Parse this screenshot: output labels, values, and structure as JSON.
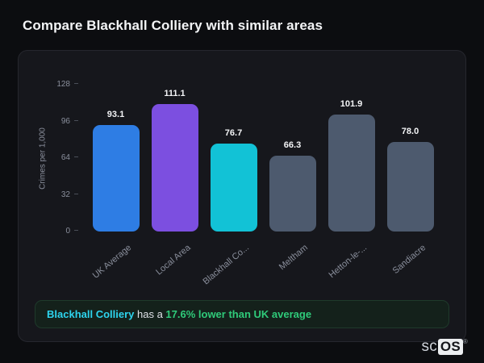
{
  "page": {
    "title": "Compare Blackhall Colliery with similar areas"
  },
  "chart_data": {
    "type": "bar",
    "title": "Compare Blackhall Colliery with similar areas",
    "xlabel": "",
    "ylabel": "Crimes per 1,000",
    "ylim": [
      0,
      128
    ],
    "yticks": [
      0,
      32,
      64,
      96,
      128
    ],
    "grid": false,
    "legend": false,
    "categories": [
      "UK Average",
      "Local Area",
      "Blackhall Co...",
      "Meltham",
      "Hetton-le-...",
      "Sandiacre"
    ],
    "values": [
      93.1,
      111.1,
      76.7,
      66.3,
      101.9,
      78.0
    ],
    "value_labels": [
      "93.1",
      "111.1",
      "76.7",
      "66.3",
      "101.9",
      "78.0"
    ],
    "bar_colors": [
      "#2e7de4",
      "#7c4fe0",
      "#12c2d6",
      "#4d5a6e",
      "#4d5a6e",
      "#4d5a6e"
    ]
  },
  "callout": {
    "area_label": "Blackhall Colliery",
    "connector": " has a ",
    "highlight": "17.6% lower than UK average",
    "area_color": "#2dd4ee",
    "highlight_color": "#2fcb7a"
  },
  "logo": {
    "prefix": "sc",
    "boxed": "OS",
    "registered": "®"
  }
}
